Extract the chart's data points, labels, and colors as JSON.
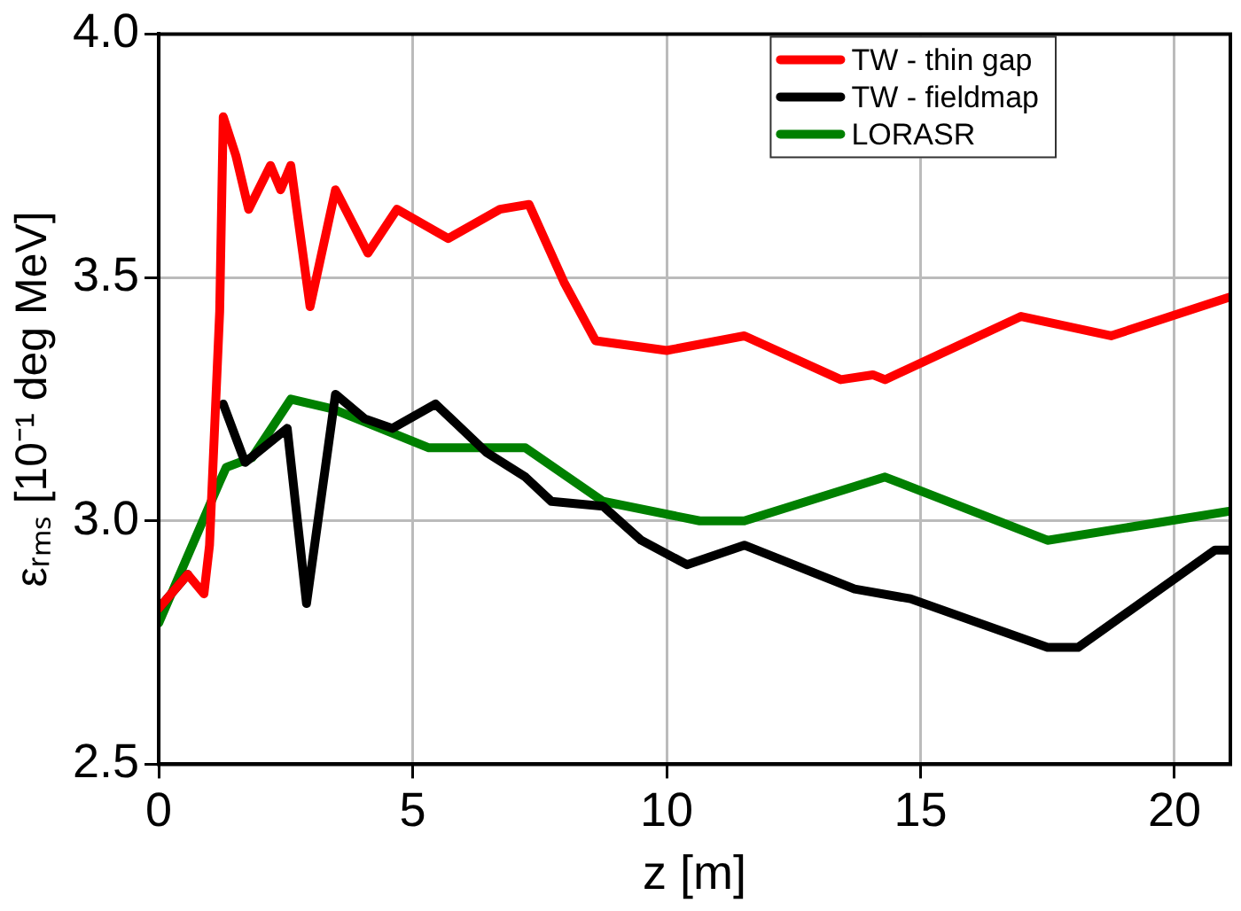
{
  "chart_data": {
    "type": "line",
    "xlabel": "z [m]",
    "ylabel": "εᵣₘₛ [10⁻¹ deg MeV]",
    "xlim": [
      0,
      21.1
    ],
    "ylim": [
      2.5,
      4.0
    ],
    "xticks": [
      0,
      5,
      10,
      15,
      20
    ],
    "yticks": [
      {
        "value": 2.5,
        "label": "2.5"
      },
      {
        "value": 3,
        "label": "3.0"
      },
      {
        "value": 3.5,
        "label": "3.5"
      },
      {
        "value": 4,
        "label": "4.0"
      }
    ],
    "grid": true,
    "legend": "top right",
    "marker": "none",
    "line_style": "solid",
    "series": [
      {
        "name": "TW - thin gap",
        "color": "#ff0000",
        "x": [
          0,
          0.57,
          0.89,
          1.0,
          1.2,
          1.27,
          1.52,
          1.77,
          2.2,
          2.4,
          2.6,
          2.98,
          3.48,
          4.12,
          4.69,
          5.7,
          6.72,
          7.29,
          7.98,
          8.6,
          10,
          11.53,
          13.43,
          14.06,
          14.3,
          16.98,
          18.75,
          21.1
        ],
        "values": [
          2.82,
          2.89,
          2.85,
          2.95,
          3.43,
          3.83,
          3.75,
          3.64,
          3.73,
          3.68,
          3.73,
          3.44,
          3.68,
          3.55,
          3.64,
          3.58,
          3.64,
          3.65,
          3.49,
          3.37,
          3.35,
          3.38,
          3.29,
          3.3,
          3.29,
          3.42,
          3.38,
          3.46
        ]
      },
      {
        "name": "TW - fieldmap",
        "color": "#000000",
        "x": [
          0,
          0.57,
          0.89,
          1.0,
          1.27,
          1.7,
          2.53,
          2.91,
          3.48,
          4.05,
          4.6,
          5.45,
          6.46,
          7.22,
          7.73,
          8.75,
          9.5,
          10.4,
          11.53,
          13.7,
          14.8,
          17.5,
          18.1,
          20.8,
          21.1
        ],
        "values": [
          2.82,
          2.89,
          null,
          null,
          3.24,
          3.12,
          3.19,
          2.83,
          3.26,
          3.21,
          3.19,
          3.24,
          3.14,
          3.09,
          3.04,
          3.03,
          2.96,
          2.91,
          2.95,
          2.86,
          2.84,
          2.74,
          2.74,
          2.94,
          2.94
        ]
      },
      {
        "name": "LORASR",
        "color": "#008000",
        "x": [
          0,
          1.2,
          1.33,
          1.84,
          2.6,
          3.42,
          5.32,
          7.22,
          8.75,
          10.65,
          11.53,
          14.3,
          17.5,
          21.1
        ],
        "values": [
          2.79,
          3.08,
          3.11,
          3.13,
          3.25,
          3.23,
          3.15,
          3.15,
          3.04,
          3.0,
          3.0,
          3.09,
          2.96,
          3.02
        ]
      }
    ]
  }
}
